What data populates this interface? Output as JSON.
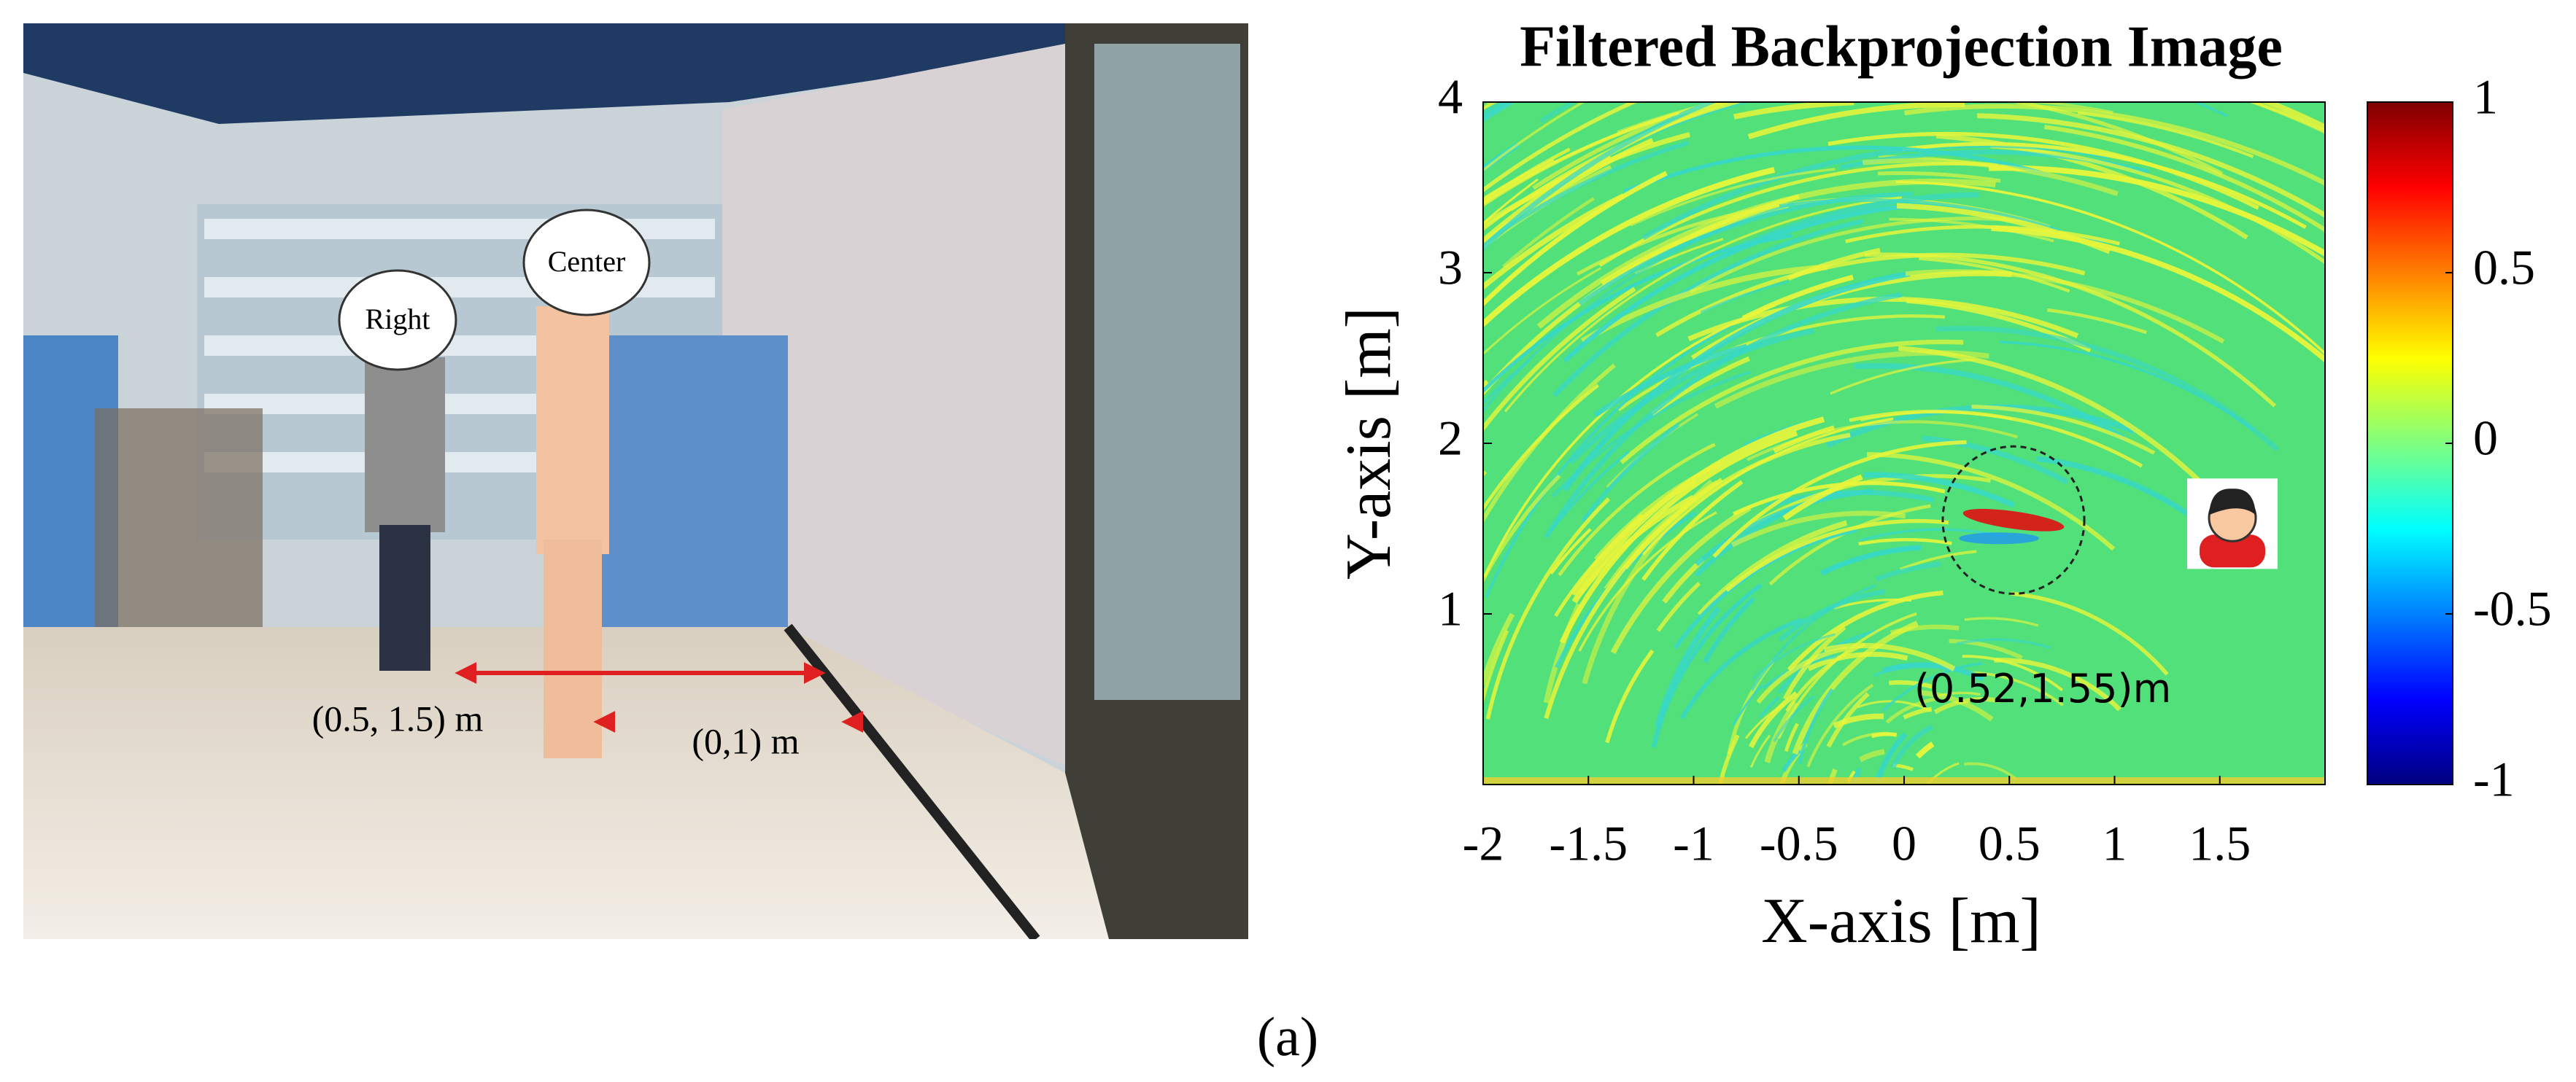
{
  "photo": {
    "labels": {
      "right": "Right",
      "center": "Center",
      "right_position": "(0.5, 1.5) m",
      "center_position": "(0,1) m"
    }
  },
  "chart_data": {
    "type": "heatmap",
    "title": "Filtered Backprojection Image",
    "x_label": "X-axis [m]",
    "y_label": "Y-axis [m]",
    "xlim": [
      -2,
      2
    ],
    "ylim": [
      0,
      4
    ],
    "xticks": [
      -2,
      -1.5,
      -1,
      -0.5,
      0,
      0.5,
      1,
      1.5
    ],
    "yticks": [
      1,
      2,
      3,
      4
    ],
    "colorbar": {
      "colormap": "jet",
      "clim": [
        -1,
        1
      ],
      "ticks": [
        -1,
        -0.5,
        0,
        0.5,
        1
      ]
    },
    "markers": [
      {
        "x": 0.52,
        "y": 1.55,
        "label": "(0.52,1.55)m"
      }
    ]
  },
  "caption": "(a)"
}
